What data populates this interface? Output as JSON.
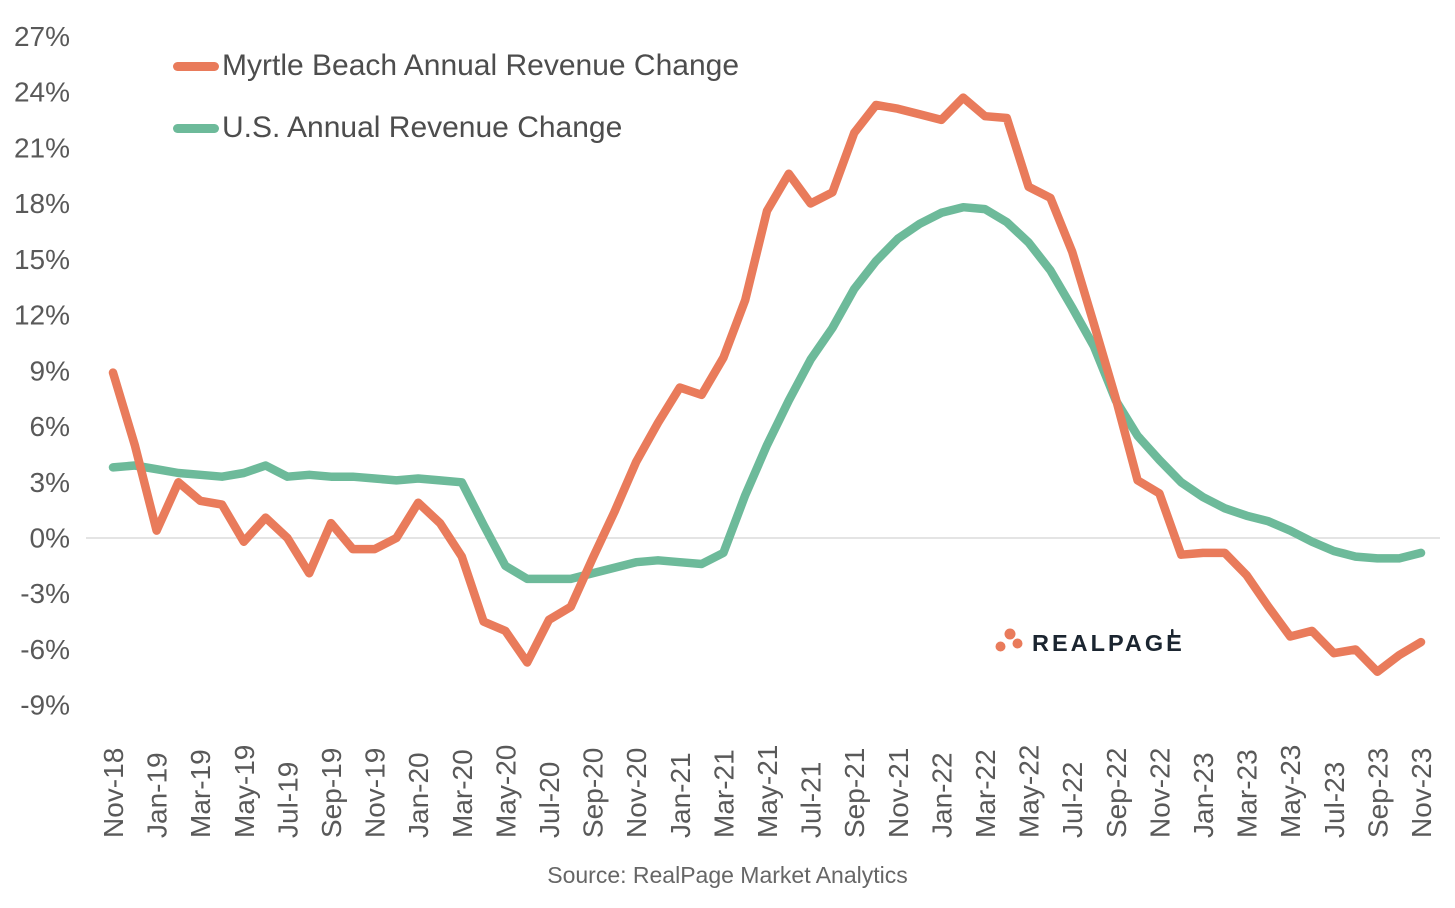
{
  "legend": {
    "items": [
      {
        "label": "Myrtle Beach Annual Revenue Change",
        "color": "#E97B5B"
      },
      {
        "label": "U.S. Annual Revenue Change",
        "color": "#6DBA9A"
      }
    ]
  },
  "source_note": "Source: RealPage Market Analytics",
  "logo": {
    "brand_text": "REALPAGE",
    "dot_color": "#E97B5B",
    "text_color": "#1B2530"
  },
  "axis": {
    "text_color": "#595959",
    "zero_line_color": "#DBDBDB"
  },
  "chart_data": {
    "type": "line",
    "title": "",
    "xlabel": "",
    "ylabel": "",
    "grid": "zero-line-only",
    "legend_position": "top-left",
    "y_axis": {
      "min": -9,
      "max": 27,
      "step": 3,
      "tick_format": "percent"
    },
    "x_tick_every": 2,
    "x": [
      "Nov-18",
      "Dec-18",
      "Jan-19",
      "Feb-19",
      "Mar-19",
      "Apr-19",
      "May-19",
      "Jun-19",
      "Jul-19",
      "Aug-19",
      "Sep-19",
      "Oct-19",
      "Nov-19",
      "Dec-19",
      "Jan-20",
      "Feb-20",
      "Mar-20",
      "Apr-20",
      "May-20",
      "Jun-20",
      "Jul-20",
      "Aug-20",
      "Sep-20",
      "Oct-20",
      "Nov-20",
      "Dec-20",
      "Jan-21",
      "Feb-21",
      "Mar-21",
      "Apr-21",
      "May-21",
      "Jun-21",
      "Jul-21",
      "Aug-21",
      "Sep-21",
      "Oct-21",
      "Nov-21",
      "Dec-21",
      "Jan-22",
      "Feb-22",
      "Mar-22",
      "Apr-22",
      "May-22",
      "Jun-22",
      "Jul-22",
      "Aug-22",
      "Sep-22",
      "Oct-22",
      "Nov-22",
      "Dec-22",
      "Jan-23",
      "Feb-23",
      "Mar-23",
      "Apr-23",
      "May-23",
      "Jun-23",
      "Jul-23",
      "Aug-23",
      "Sep-23",
      "Oct-23",
      "Nov-23"
    ],
    "series": [
      {
        "name": "Myrtle Beach Annual Revenue Change",
        "color": "#E97B5B",
        "values": [
          8.9,
          5.0,
          0.4,
          3.0,
          2.0,
          1.8,
          -0.2,
          1.1,
          0.0,
          -1.9,
          0.8,
          -0.6,
          -0.6,
          0.0,
          1.9,
          0.8,
          -1.0,
          -4.5,
          -5.0,
          -6.7,
          -4.4,
          -3.7,
          -1.1,
          1.4,
          4.1,
          6.2,
          8.1,
          7.7,
          9.7,
          12.8,
          17.6,
          19.6,
          18.0,
          18.6,
          21.8,
          23.3,
          23.1,
          22.8,
          22.5,
          23.7,
          22.7,
          22.6,
          18.9,
          18.3,
          15.4,
          11.5,
          7.5,
          3.1,
          2.4,
          -0.9,
          -0.8,
          -0.8,
          -2.0,
          -3.7,
          -5.3,
          -5.0,
          -6.2,
          -6.0,
          -7.2,
          -6.3,
          -5.6
        ]
      },
      {
        "name": "U.S. Annual Revenue Change",
        "color": "#6DBA9A",
        "values": [
          3.8,
          3.9,
          3.7,
          3.5,
          3.4,
          3.3,
          3.5,
          3.9,
          3.3,
          3.4,
          3.3,
          3.3,
          3.2,
          3.1,
          3.2,
          3.1,
          3.0,
          0.7,
          -1.5,
          -2.2,
          -2.2,
          -2.2,
          -1.9,
          -1.6,
          -1.3,
          -1.2,
          -1.3,
          -1.4,
          -0.8,
          2.3,
          5.0,
          7.4,
          9.6,
          11.3,
          13.4,
          14.9,
          16.1,
          16.9,
          17.5,
          17.8,
          17.7,
          17.0,
          15.9,
          14.4,
          12.4,
          10.3,
          7.4,
          5.5,
          4.2,
          3.0,
          2.2,
          1.6,
          1.2,
          0.9,
          0.4,
          -0.2,
          -0.7,
          -1.0,
          -1.1,
          -1.1,
          -0.8
        ]
      }
    ]
  }
}
